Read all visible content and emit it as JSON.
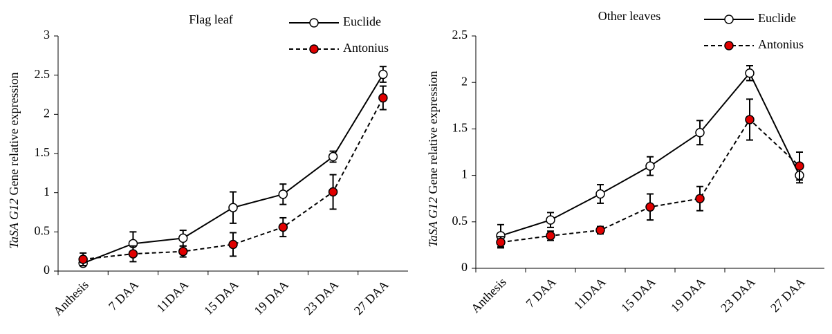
{
  "chart_data": [
    {
      "type": "line",
      "title": "Flag leaf",
      "y_label_gene": "TaSA G12",
      "y_label": "Gene relative expression",
      "categories": [
        "Anthesis",
        "7 DAA",
        "11DAA",
        "15 DAA",
        "19 DAA",
        "23 DAA",
        "27 DAA"
      ],
      "series": [
        {
          "name": "Euclide",
          "color": "#ffffff",
          "line_style": "solid",
          "values": [
            0.1,
            0.35,
            0.42,
            0.81,
            0.98,
            1.46,
            2.51
          ],
          "errors": [
            0.03,
            0.15,
            0.1,
            0.2,
            0.13,
            0.07,
            0.1
          ]
        },
        {
          "name": "Antonius",
          "color": "#e00000",
          "line_style": "dashed",
          "values": [
            0.15,
            0.22,
            0.25,
            0.34,
            0.56,
            1.01,
            2.21
          ],
          "errors": [
            0.08,
            0.1,
            0.07,
            0.15,
            0.12,
            0.22,
            0.15
          ]
        }
      ],
      "ylim": [
        0,
        3
      ],
      "yticks": [
        0,
        0.5,
        1,
        1.5,
        2,
        2.5,
        3
      ],
      "legend": "upper right"
    },
    {
      "type": "line",
      "title": "Other leaves",
      "y_label_gene": "TaSA G12",
      "y_label": "Gene relative expression",
      "categories": [
        "Anthesis",
        "7 DAA",
        "11DAA",
        "15 DAA",
        "19 DAA",
        "23 DAA",
        "27 DAA"
      ],
      "series": [
        {
          "name": "Euclide",
          "color": "#ffffff",
          "line_style": "solid",
          "values": [
            0.35,
            0.52,
            0.8,
            1.1,
            1.46,
            2.1,
            1.0
          ],
          "errors": [
            0.12,
            0.08,
            0.1,
            0.1,
            0.13,
            0.08,
            0.08
          ]
        },
        {
          "name": "Antonius",
          "color": "#e00000",
          "line_style": "dashed",
          "values": [
            0.28,
            0.35,
            0.41,
            0.66,
            0.75,
            1.6,
            1.1
          ],
          "errors": [
            0.06,
            0.05,
            0.04,
            0.14,
            0.13,
            0.22,
            0.15
          ]
        }
      ],
      "ylim": [
        0,
        2.5
      ],
      "yticks": [
        0,
        0.5,
        1,
        1.5,
        2,
        2.5
      ],
      "legend": "upper right"
    }
  ]
}
